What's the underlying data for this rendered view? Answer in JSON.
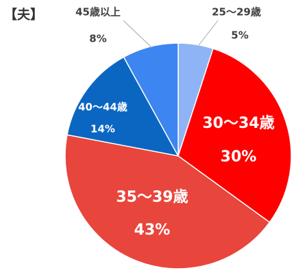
{
  "chart_data": {
    "type": "pie",
    "title": "【夫】",
    "categories": [
      "25～29歳",
      "30～34歳",
      "35～39歳",
      "40～44歳",
      "45歳以上"
    ],
    "values": [
      5,
      30,
      43,
      14,
      8
    ],
    "value_labels": [
      "5%",
      "30%",
      "43%",
      "14%",
      "8%"
    ],
    "colors": [
      "#8fb4f5",
      "#ff0000",
      "#e8453c",
      "#0b66c2",
      "#3d85f0"
    ]
  }
}
